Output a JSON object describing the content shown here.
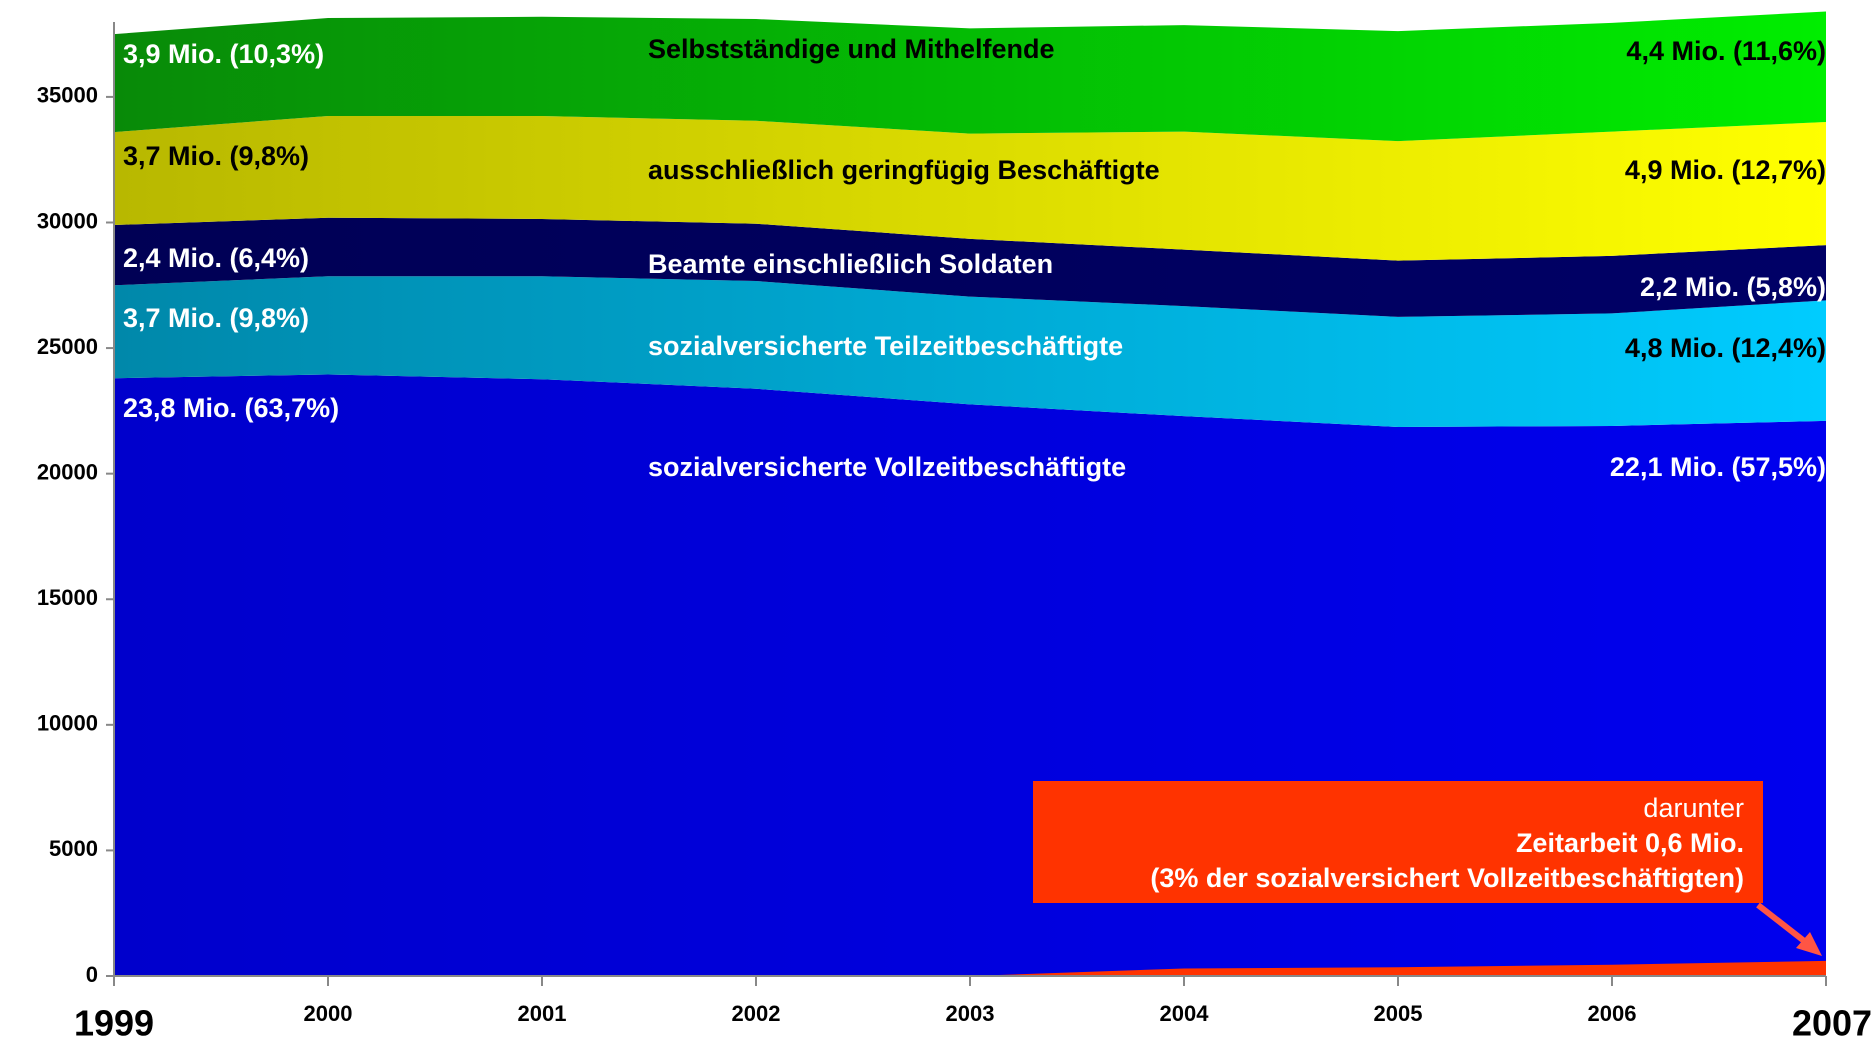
{
  "chart_data": {
    "type": "stacked_area",
    "x": [
      1999,
      2000,
      2001,
      2002,
      2003,
      2004,
      2005,
      2006,
      2007
    ],
    "ylim": [
      0,
      38500
    ],
    "yticks": [
      0,
      5000,
      10000,
      15000,
      20000,
      25000,
      30000,
      35000
    ],
    "series": [
      {
        "name": "sozialversicherte Vollzeitbeschäftigte",
        "color": "#0000ee",
        "color_dark": "#0000cc",
        "values": [
          23800,
          23950,
          23760,
          23380,
          22760,
          22290,
          21860,
          21900,
          22100
        ],
        "label_start": "23,8 Mio. (63,7%)",
        "label_end": "22,1 Mio. (57,5%)"
      },
      {
        "name": "sozialversicherte Teilzeitbeschäftigte",
        "color": "#00ccff",
        "color_dark": "#0088aa",
        "values": [
          3700,
          3910,
          4100,
          4290,
          4290,
          4380,
          4380,
          4480,
          4800
        ],
        "label_start": "3,7 Mio. (9,8%)",
        "label_end": "4,8 Mio. (12,4%)"
      },
      {
        "name": "Beamte einschließlich Soldaten",
        "color": "#000066",
        "color_dark": "#000055",
        "values": [
          2400,
          2330,
          2280,
          2280,
          2300,
          2250,
          2240,
          2290,
          2200
        ],
        "label_start": "2,4 Mio. (6,4%)",
        "label_end": "2,2 Mio. (5,8%)"
      },
      {
        "name": "ausschließlich geringfügig Beschäftigte",
        "color": "#ffff00",
        "color_dark": "#b8b800",
        "values": [
          3700,
          4050,
          4100,
          4100,
          4190,
          4700,
          4760,
          4950,
          4900
        ],
        "label_start": "3,7 Mio. (9,8%)",
        "label_end": "4,9 Mio. (12,7%)"
      },
      {
        "name": "Selbstständige und Mithelfende",
        "color": "#00ee00",
        "color_dark": "#088a08",
        "values": [
          3900,
          3900,
          3950,
          4050,
          4190,
          4240,
          4380,
          4330,
          4400
        ],
        "label_start": "3,9 Mio. (10,3%)",
        "label_end": "4,4 Mio. (11,6%)"
      }
    ],
    "overlay": {
      "color": "#ff3300",
      "values": [
        0,
        0,
        0,
        0,
        0,
        300,
        350,
        450,
        600
      ]
    },
    "annotation": [
      "darunter",
      "Zeitarbeit 0,6 Mio.",
      "(3% der sozialversichert Vollzeitbeschäftigten)"
    ]
  }
}
